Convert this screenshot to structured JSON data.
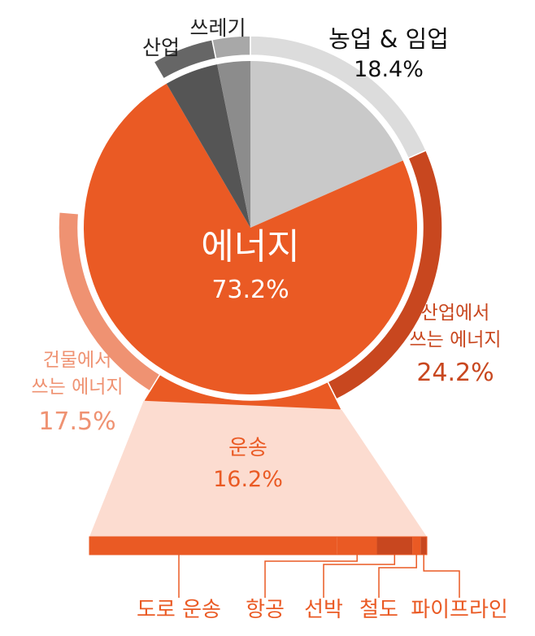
{
  "chart_data": {
    "type": "pie",
    "inner_slices": [
      {
        "name": "에너지",
        "value": 73.2,
        "color": "#ea5a24"
      },
      {
        "name": "산업",
        "value": 5.2,
        "color": "#555555"
      },
      {
        "name": "쓰레기",
        "value": 3.2,
        "color": "#8c8c8c"
      },
      {
        "name": "농업 & 임업",
        "value": 18.4,
        "color": "#c9c9c9"
      }
    ],
    "energy_breakdown": [
      {
        "name": "산업에서 쓰는 에너지",
        "line1": "산업에서",
        "line2": "쓰는 에너지",
        "value": 24.2,
        "value_label": "24.2%",
        "color": "#c8471f"
      },
      {
        "name": "운송",
        "value": 16.2,
        "value_label": "16.2%",
        "color": "#ea5a24"
      },
      {
        "name": "건물에서 쓰는 에너지",
        "line1": "건물에서",
        "line2": "쓰는 에너지",
        "value": 17.5,
        "value_label": "17.5%",
        "color": "#ef9272"
      }
    ],
    "labels": {
      "energy": {
        "name": "에너지",
        "value_label": "73.2%"
      },
      "industry": {
        "name": "산업"
      },
      "waste": {
        "name": "쓰레기"
      },
      "agriculture": {
        "name": "농업 & 임업",
        "value_label": "18.4%"
      }
    },
    "transport_bar": {
      "segments": [
        {
          "name": "도로 운송",
          "value": 11.9,
          "color": "#ea5a24"
        },
        {
          "name": "항공",
          "value": 1.9,
          "color": "#ea5a24"
        },
        {
          "name": "선박",
          "value": 1.7,
          "color": "#c8471f"
        },
        {
          "name": "철도",
          "value": 0.4,
          "color": "#ea5a24"
        },
        {
          "name": "파이프라인",
          "value": 0.3,
          "color": "#c8471f"
        }
      ]
    }
  }
}
